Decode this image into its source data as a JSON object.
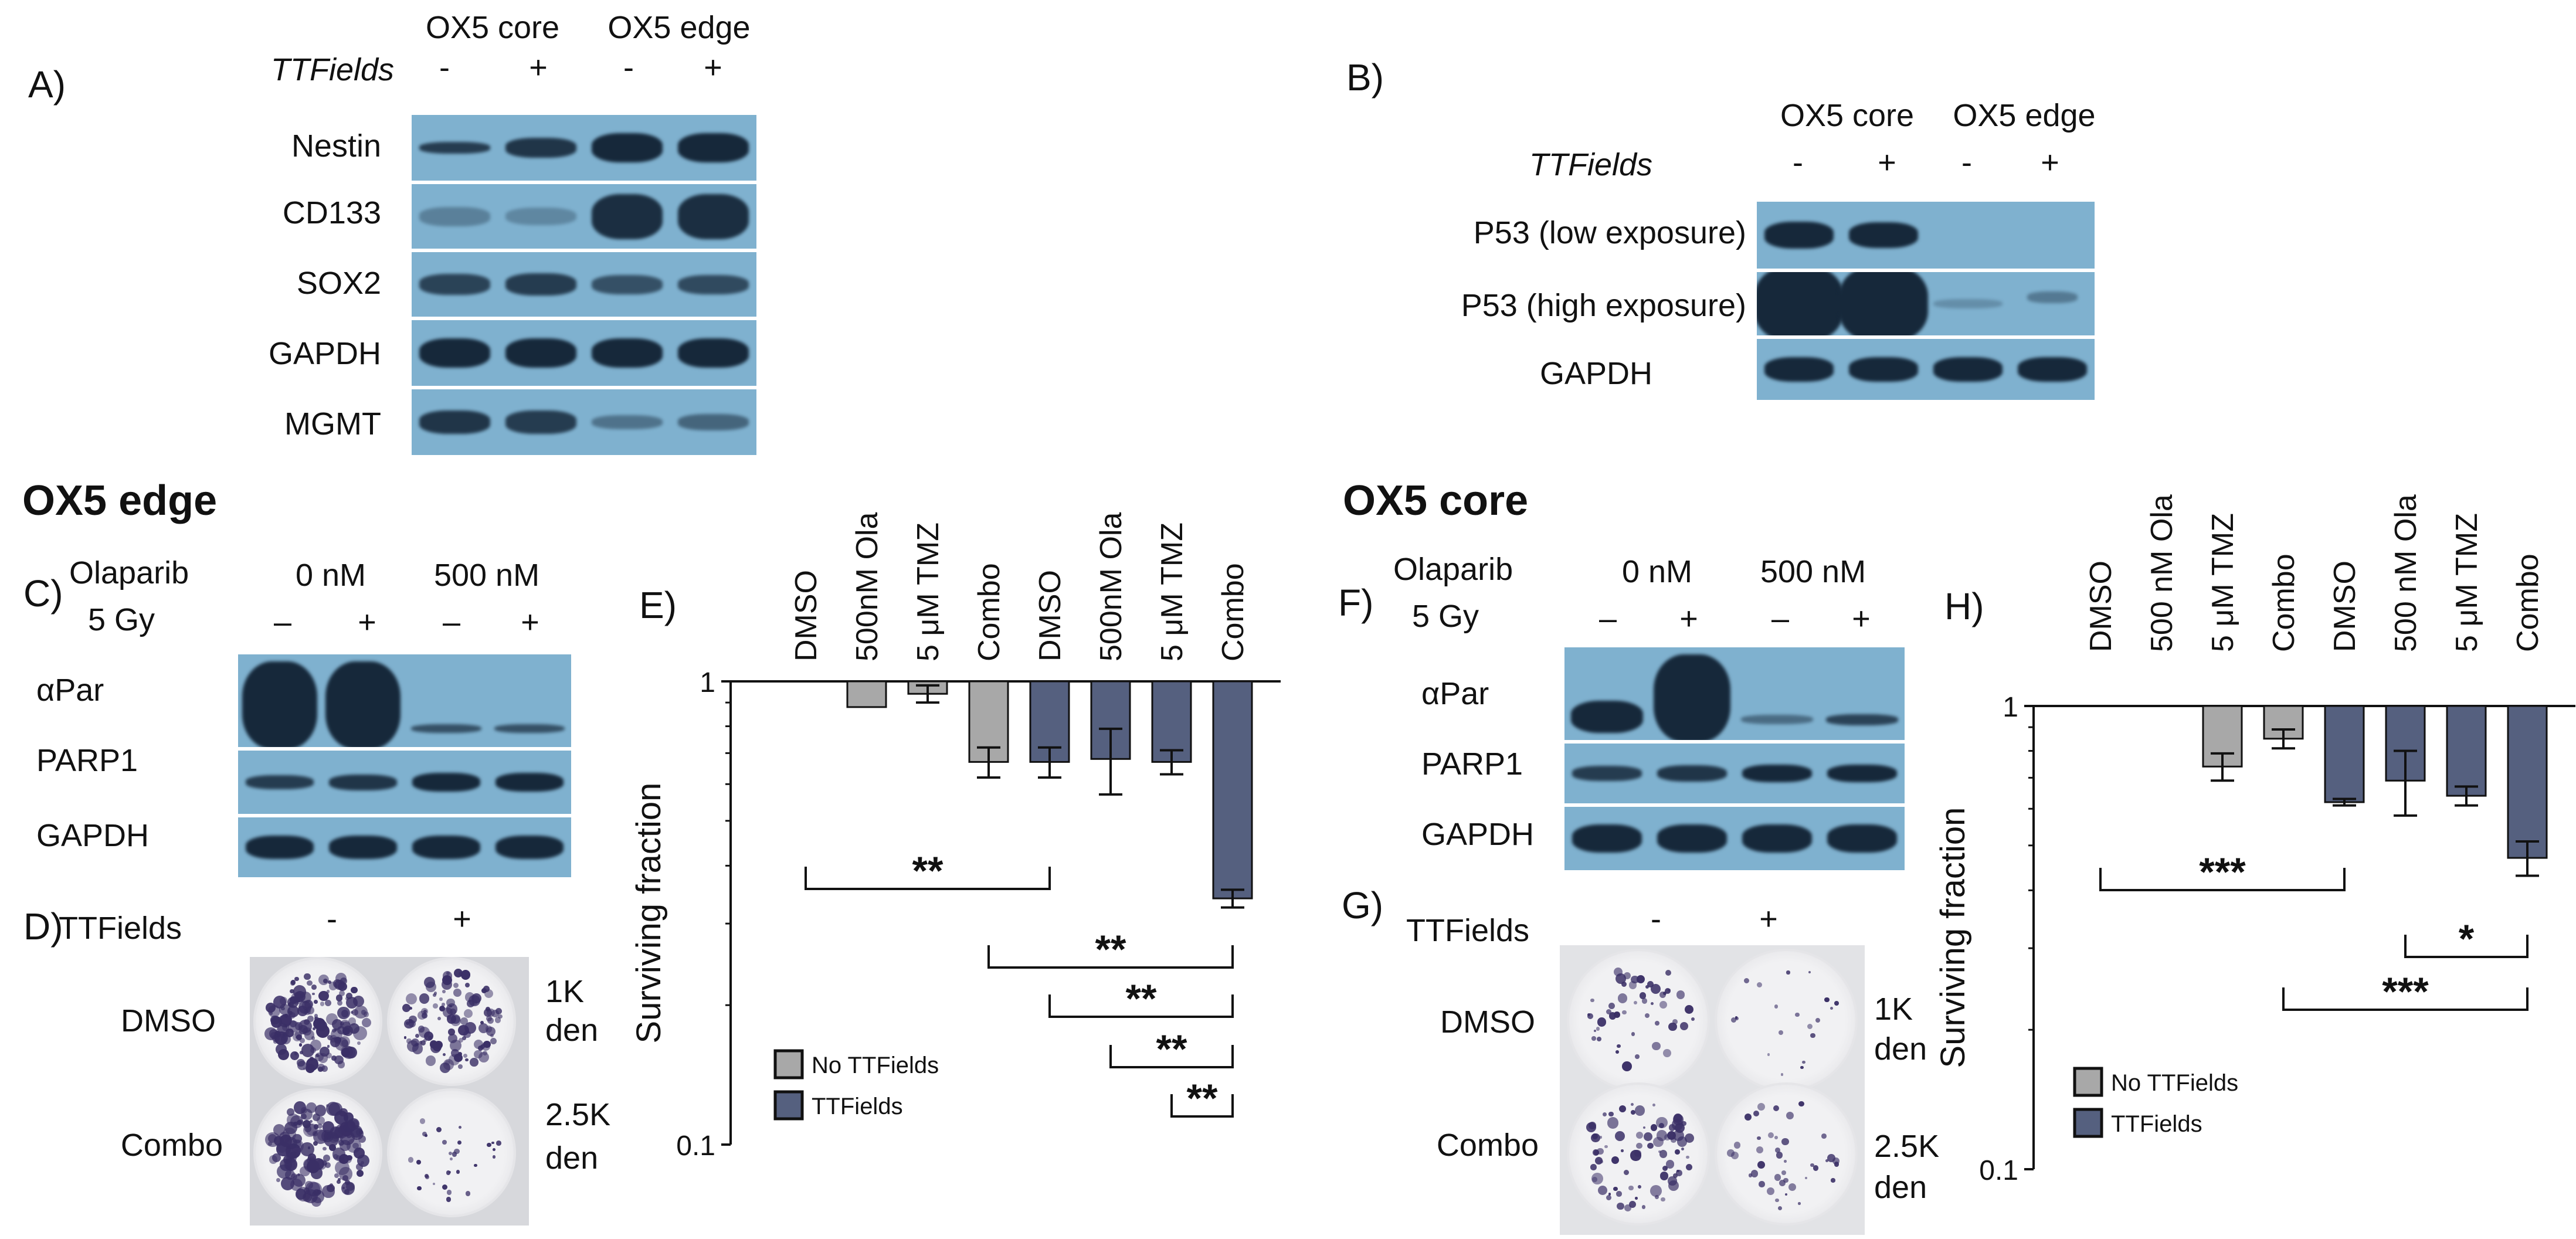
{
  "panels": {
    "A": {
      "letter": "A)",
      "groups": [
        "OX5 core",
        "OX5 edge"
      ],
      "treatment_label": "TTFields",
      "signs": [
        "-",
        "+",
        "-",
        "+"
      ],
      "rows": [
        "Nestin",
        "CD133",
        "SOX2",
        "GAPDH",
        "MGMT"
      ]
    },
    "B": {
      "letter": "B)",
      "groups": [
        "OX5 core",
        "OX5 edge"
      ],
      "treatment_label": "TTFields",
      "signs": [
        "-",
        "+",
        "-",
        "+"
      ],
      "rows": [
        "P53 (low exposure)",
        "P53 (high exposure)",
        "GAPDH"
      ]
    },
    "C": {
      "title": "OX5 edge",
      "letter": "C)",
      "drug_label": "Olaparib",
      "dose_label": "5 Gy",
      "doses": [
        "0 nM",
        "500 nM"
      ],
      "signs": [
        "–",
        "+",
        "–",
        "+"
      ],
      "rows": [
        "αPar",
        "PARP1",
        "GAPDH"
      ]
    },
    "D": {
      "letter": "D)",
      "treatment_label": "TTFields",
      "signs": [
        "-",
        "+"
      ],
      "row_labels": [
        "DMSO",
        "Combo"
      ],
      "density_labels": [
        [
          "1K",
          "den"
        ],
        [
          "2.5K",
          "den"
        ]
      ]
    },
    "F": {
      "title": "OX5 core",
      "letter": "F)",
      "drug_label": "Olaparib",
      "dose_label": "5 Gy",
      "doses": [
        "0 nM",
        "500 nM"
      ],
      "signs": [
        "–",
        "+",
        "–",
        "+"
      ],
      "rows": [
        "αPar",
        "PARP1",
        "GAPDH"
      ]
    },
    "G": {
      "letter": "G)",
      "treatment_label": "TTFields",
      "signs": [
        "-",
        "+"
      ],
      "row_labels": [
        "DMSO",
        "Combo"
      ],
      "density_labels": [
        [
          "1K",
          "den"
        ],
        [
          "2.5K",
          "den"
        ]
      ]
    }
  },
  "colors": {
    "no_ttfields": "#a8a8a8",
    "ttfields": "#55607f",
    "blot_bg": "#7fb1cf",
    "band": "#16283a"
  },
  "chart_data": [
    {
      "panel": "E)",
      "type": "bar",
      "ylabel": "Surviving fraction",
      "yscale": "log",
      "ylim": [
        0.1,
        1
      ],
      "yticks": [
        "1",
        "0.1"
      ],
      "categories": [
        "DMSO",
        "500nM Ola",
        "5 μM TMZ",
        "Combo",
        "DMSO",
        "500nM Ola",
        "5 μM TMZ",
        "Combo"
      ],
      "values": [
        1.0,
        0.88,
        0.94,
        0.67,
        0.67,
        0.68,
        0.67,
        0.34
      ],
      "errors": [
        0,
        0,
        0.04,
        0.05,
        0.05,
        0.11,
        0.04,
        0.015
      ],
      "groups": [
        "No TTFields",
        "No TTFields",
        "No TTFields",
        "No TTFields",
        "TTFields",
        "TTFields",
        "TTFields",
        "TTFields"
      ],
      "legend": [
        "No TTFields",
        "TTFields"
      ],
      "significance": [
        {
          "from": 0,
          "to": 4,
          "label": "**"
        },
        {
          "from": 3,
          "to": 7,
          "label": "**"
        },
        {
          "from": 4,
          "to": 7,
          "label": "**"
        },
        {
          "from": 5,
          "to": 7,
          "label": "**"
        },
        {
          "from": 6,
          "to": 7,
          "label": "**"
        }
      ]
    },
    {
      "panel": "H)",
      "type": "bar",
      "ylabel": "Surviving fraction",
      "yscale": "log",
      "ylim": [
        0.1,
        1
      ],
      "yticks": [
        "1",
        "0.1"
      ],
      "categories": [
        "DMSO",
        "500 nM Ola",
        "5 μM TMZ",
        "Combo",
        "DMSO",
        "500 nM Ola",
        "5 μM TMZ",
        "Combo"
      ],
      "values": [
        1.0,
        1.0,
        0.74,
        0.85,
        0.62,
        0.69,
        0.64,
        0.47
      ],
      "errors": [
        0,
        0,
        0.05,
        0.04,
        0.01,
        0.11,
        0.03,
        0.04
      ],
      "groups": [
        "No TTFields",
        "No TTFields",
        "No TTFields",
        "No TTFields",
        "TTFields",
        "TTFields",
        "TTFields",
        "TTFields"
      ],
      "legend": [
        "No TTFields",
        "TTFields"
      ],
      "significance": [
        {
          "from": 0,
          "to": 4,
          "label": "***"
        },
        {
          "from": 5,
          "to": 7,
          "label": "*"
        },
        {
          "from": 3,
          "to": 7,
          "label": "***"
        }
      ]
    }
  ]
}
